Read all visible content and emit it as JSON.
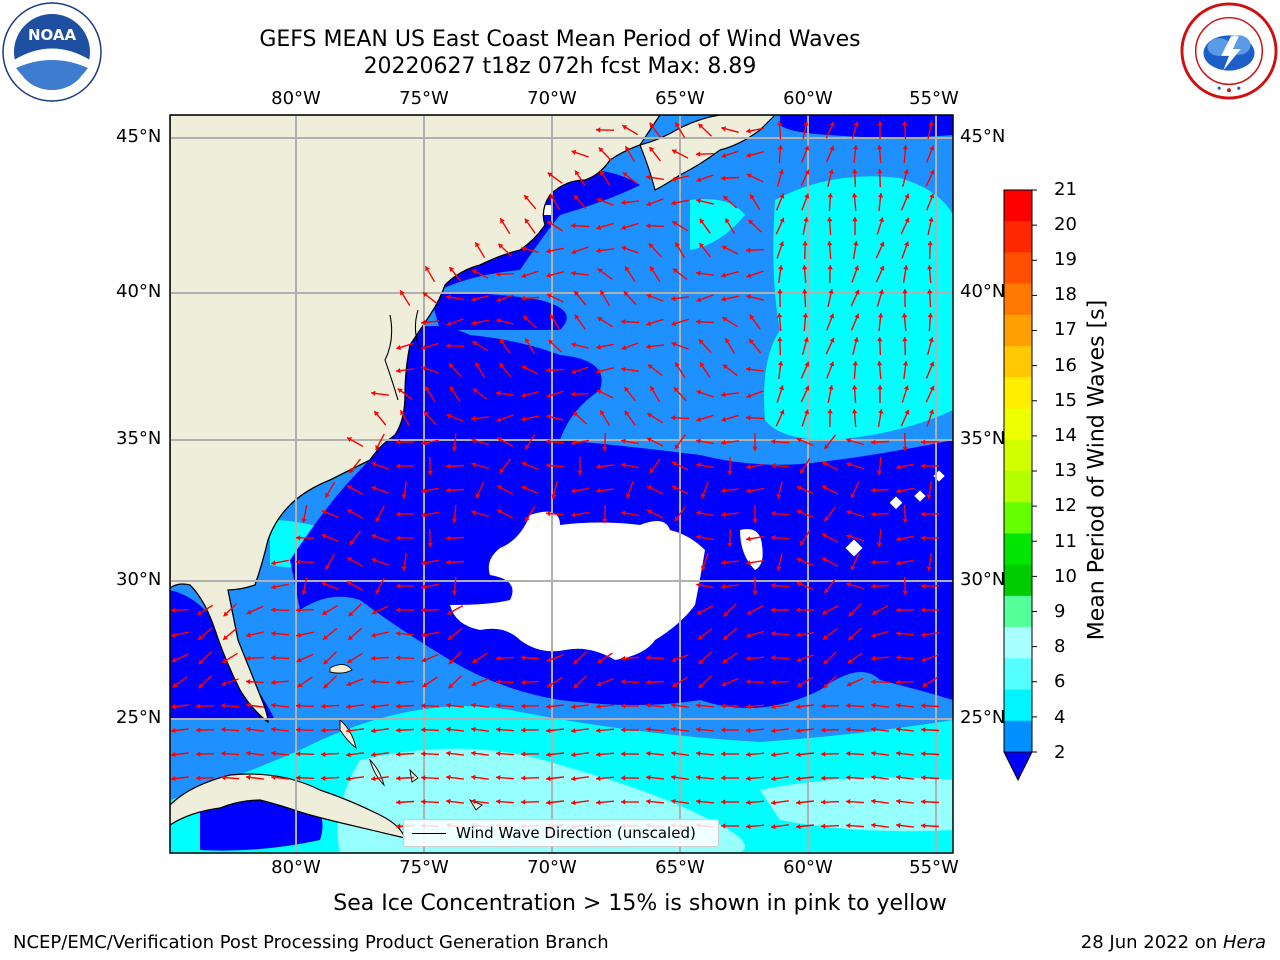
{
  "title": {
    "line1": "GEFS MEAN US East Coast Mean Period of Wind Waves",
    "line2": "20220627 t18z 072h fcst   Max: 8.89"
  },
  "logos": {
    "left": {
      "name": "noaa-logo",
      "text": "NOAA",
      "ring_text": "NATIONAL OCEANIC AND ATMOSPHERIC ADMINISTRATION · U.S. DEPARTMENT OF COMMERCE"
    },
    "right": {
      "name": "nws-logo",
      "ring_text": "NATIONAL WEATHER SERVICE"
    }
  },
  "axes": {
    "lon_labels": [
      "80°W",
      "75°W",
      "70°W",
      "65°W",
      "60°W",
      "55°W"
    ],
    "lat_labels": [
      "45°N",
      "40°N",
      "35°N",
      "30°N",
      "25°N"
    ]
  },
  "colorbar": {
    "title": "Mean Period of Wind Waves [s]",
    "ticks": [
      "21",
      "20",
      "19",
      "18",
      "17",
      "16",
      "15",
      "14",
      "13",
      "12",
      "11",
      "10",
      "9",
      "8",
      "6",
      "4",
      "2"
    ],
    "colors": [
      "#ff0000",
      "#ff2800",
      "#ff5000",
      "#ff7800",
      "#ffa000",
      "#ffc800",
      "#ffee00",
      "#eeff00",
      "#d2ff00",
      "#b4ff00",
      "#66ff00",
      "#00e600",
      "#00cc00",
      "#55ff99",
      "#aaffff",
      "#55ffff",
      "#00f6ff",
      "#0090ff"
    ],
    "extend_color": "#0000ff"
  },
  "legend": {
    "label": "Wind Wave Direction (unscaled)"
  },
  "colors": {
    "land": "#eeeedb",
    "deep_blue": "#0000ff",
    "mid_blue": "#1e90ff",
    "cyan": "#00ffff",
    "light_cyan": "#98ffff",
    "arrows": "#ff0000",
    "grid": "#b0b0b0"
  },
  "footer": {
    "subtitle": "Sea Ice Concentration > 15% is shown in pink to yellow",
    "left": "NCEP/EMC/Verification Post Processing Product Generation Branch",
    "right_date": "28 Jun 2022 on ",
    "right_host": "Hera"
  }
}
